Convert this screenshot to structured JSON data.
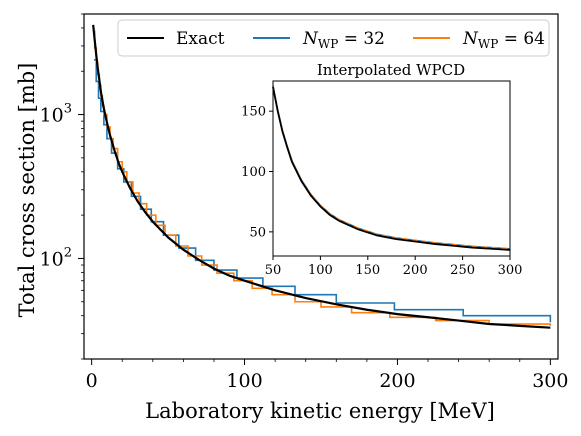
{
  "chart_data": [
    {
      "type": "line",
      "title": "",
      "xlabel": "Laboratory kinetic energy [MeV]",
      "ylabel": "Total cross section [mb]",
      "xlim": [
        -5,
        305
      ],
      "ylim": [
        20,
        5000
      ],
      "yscale": "log",
      "grid": false,
      "legend_position": "top",
      "x_ticks": [
        0,
        100,
        200,
        300
      ],
      "x_tick_labels": [
        "0",
        "100",
        "200",
        "300"
      ],
      "y_ticks": [
        100,
        1000
      ],
      "y_tick_labels": [
        "10^2",
        "10^3"
      ],
      "legend": [
        {
          "label": "Exact",
          "color": "#000000"
        },
        {
          "label_main": "N",
          "label_sub": "WP",
          "label_rest": " = 32",
          "color": "#1f77b4"
        },
        {
          "label_main": "N",
          "label_sub": "WP",
          "label_rest": " = 64",
          "color": "#ff7f0e"
        }
      ],
      "series": [
        {
          "name": "Exact",
          "color": "#000000",
          "x": [
            1,
            2,
            3,
            4,
            5,
            6,
            8,
            10,
            12,
            15,
            18,
            20,
            25,
            30,
            35,
            40,
            50,
            60,
            70,
            80,
            90,
            100,
            120,
            140,
            160,
            180,
            200,
            220,
            240,
            260,
            280,
            300
          ],
          "y": [
            4200,
            3300,
            2600,
            2100,
            1750,
            1450,
            1100,
            880,
            720,
            560,
            450,
            400,
            310,
            250,
            210,
            180,
            140,
            115,
            98,
            85,
            76,
            70,
            60,
            53,
            48,
            44,
            41,
            39,
            37,
            35,
            34,
            33
          ]
        },
        {
          "name": "N_WP = 32",
          "color": "#1f77b4",
          "x": [
            1.5,
            3,
            4.5,
            6,
            8,
            10,
            13,
            17,
            21,
            26,
            32,
            39,
            47,
            57,
            68,
            80,
            95,
            112,
            133,
            160,
            198,
            243,
            300
          ],
          "y": [
            2400,
            1700,
            1300,
            1050,
            850,
            680,
            540,
            420,
            340,
            270,
            220,
            180,
            145,
            118,
            97,
            83,
            73,
            64,
            56,
            49,
            44,
            40,
            36
          ]
        },
        {
          "name": "N_WP = 64",
          "color": "#ff7f0e",
          "x": [
            1,
            2,
            3,
            4,
            5,
            6,
            7,
            8,
            10,
            12,
            14,
            17,
            20,
            23,
            27,
            31,
            36,
            42,
            48,
            55,
            63,
            72,
            82,
            93,
            105,
            118,
            133,
            150,
            170,
            195,
            225,
            260,
            300
          ],
          "y": [
            3800,
            2900,
            2300,
            1900,
            1600,
            1350,
            1150,
            1000,
            820,
            680,
            580,
            470,
            400,
            340,
            285,
            240,
            200,
            170,
            145,
            122,
            104,
            90,
            79,
            70,
            62,
            56,
            50,
            46,
            42,
            39,
            37,
            35,
            34
          ]
        }
      ]
    },
    {
      "type": "line",
      "title": "Interpolated WPCD",
      "xlabel": "",
      "ylabel": "",
      "xlim": [
        50,
        300
      ],
      "ylim": [
        30,
        175
      ],
      "grid": false,
      "x_ticks": [
        50,
        100,
        150,
        200,
        250,
        300
      ],
      "x_tick_labels": [
        "50",
        "100",
        "150",
        "200",
        "250",
        "300"
      ],
      "y_ticks": [
        50,
        100,
        150
      ],
      "y_tick_labels": [
        "50",
        "100",
        "150"
      ],
      "series": [
        {
          "name": "Exact",
          "color": "#000000",
          "x": [
            50,
            55,
            60,
            65,
            70,
            80,
            90,
            100,
            110,
            120,
            140,
            160,
            180,
            200,
            220,
            240,
            260,
            280,
            300
          ],
          "y": [
            170,
            150,
            133,
            120,
            108,
            92,
            80,
            71,
            64,
            59,
            52,
            47,
            44,
            42,
            40,
            38.5,
            37,
            36,
            35
          ]
        },
        {
          "name": "N_WP = 32",
          "color": "#1f77b4",
          "x": [
            50,
            55,
            60,
            65,
            70,
            80,
            90,
            100,
            110,
            120,
            140,
            160,
            180,
            200,
            220,
            240,
            260,
            280,
            300
          ],
          "y": [
            171,
            151,
            134,
            121,
            109,
            93,
            81,
            72,
            65,
            60,
            53,
            48,
            45,
            43,
            41,
            39.5,
            38,
            37,
            36
          ]
        },
        {
          "name": "N_WP = 64",
          "color": "#ff7f0e",
          "x": [
            50,
            55,
            60,
            65,
            70,
            80,
            90,
            100,
            110,
            120,
            140,
            160,
            180,
            200,
            220,
            240,
            260,
            280,
            300
          ],
          "y": [
            171,
            151,
            134,
            121,
            109,
            93,
            81,
            72,
            65,
            60,
            53,
            48,
            45,
            43,
            41,
            39.5,
            38,
            37,
            36
          ]
        }
      ]
    }
  ]
}
